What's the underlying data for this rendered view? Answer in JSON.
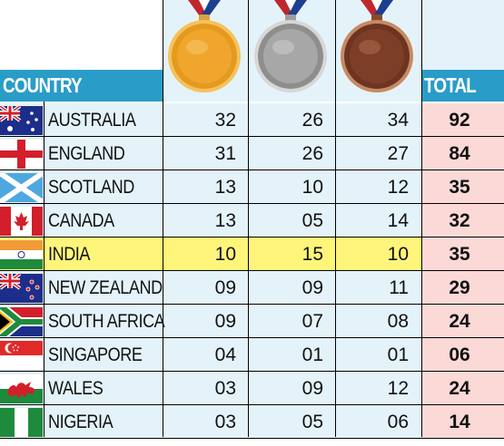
{
  "header": {
    "country_label": "COUNTRY",
    "total_label": "TOTAL"
  },
  "medals": [
    "gold-medal-icon",
    "silver-medal-icon",
    "bronze-medal-icon"
  ],
  "colors": {
    "header_blue": "#2a9cc8",
    "cell_bg": "#e4f3f9",
    "highlight": "#fff57a",
    "total_bg": "#fbd9d7"
  },
  "rows": [
    {
      "country": "AUSTRALIA",
      "flag": "australia-flag-icon",
      "gold": "32",
      "silver": "26",
      "bronze": "34",
      "total": "92"
    },
    {
      "country": "ENGLAND",
      "flag": "england-flag-icon",
      "gold": "31",
      "silver": "26",
      "bronze": "27",
      "total": "84"
    },
    {
      "country": "SCOTLAND",
      "flag": "scotland-flag-icon",
      "gold": "13",
      "silver": "10",
      "bronze": "12",
      "total": "35"
    },
    {
      "country": "CANADA",
      "flag": "canada-flag-icon",
      "gold": "13",
      "silver": "05",
      "bronze": "14",
      "total": "32"
    },
    {
      "country": "INDIA",
      "flag": "india-flag-icon",
      "gold": "10",
      "silver": "15",
      "bronze": "10",
      "total": "35"
    },
    {
      "country": "NEW ZEALAND",
      "flag": "new-zealand-flag-icon",
      "gold": "09",
      "silver": "09",
      "bronze": "11",
      "total": "29"
    },
    {
      "country": "SOUTH AFRICA",
      "flag": "south-africa-flag-icon",
      "gold": "09",
      "silver": "07",
      "bronze": "08",
      "total": "24"
    },
    {
      "country": "SINGAPORE",
      "flag": "singapore-flag-icon",
      "gold": "04",
      "silver": "01",
      "bronze": "01",
      "total": "06"
    },
    {
      "country": "WALES",
      "flag": "wales-flag-icon",
      "gold": "03",
      "silver": "09",
      "bronze": "12",
      "total": "24"
    },
    {
      "country": "NIGERIA",
      "flag": "nigeria-flag-icon",
      "gold": "03",
      "silver": "05",
      "bronze": "06",
      "total": "14"
    }
  ]
}
